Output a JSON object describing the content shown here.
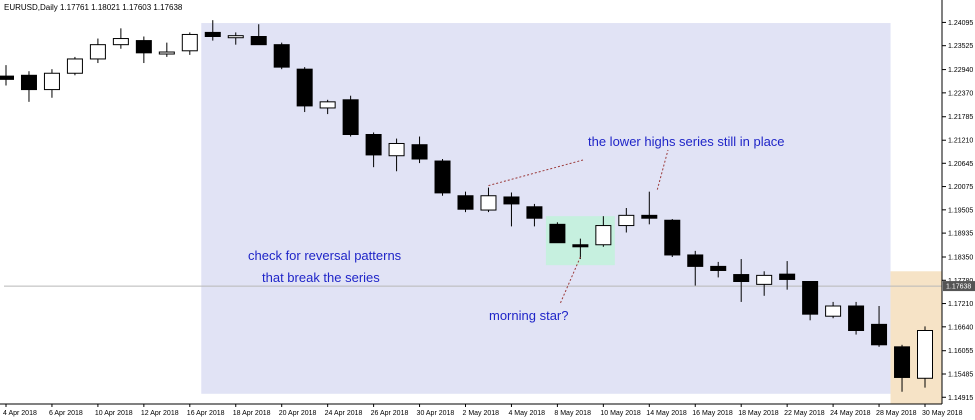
{
  "chart_data": {
    "type": "candlestick",
    "symbol_caption": "EURUSD,Daily  1.17761 1.18021 1.17603 1.17638",
    "ylim": [
      1.1475,
      1.2435
    ],
    "ytick_values": [
      1.24095,
      1.23525,
      1.2294,
      1.2237,
      1.21785,
      1.2121,
      1.20645,
      1.20075,
      1.19505,
      1.18935,
      1.1835,
      1.1778,
      1.1721,
      1.1664,
      1.16055,
      1.15485,
      1.14915
    ],
    "ytick_labels": [
      "1.24095",
      "1.23525",
      "1.22940",
      "1.22370",
      "1.21785",
      "1.21210",
      "1.20645",
      "1.20075",
      "1.19505",
      "1.18935",
      "1.18350",
      "1.17780",
      "1.17210",
      "1.16640",
      "1.16055",
      "1.15485",
      "1.14915"
    ],
    "current_price": 1.17638,
    "current_price_label": "1.17638",
    "xtick_labels": [
      "4 Apr 2018",
      "6 Apr 2018",
      "10 Apr 2018",
      "12 Apr 2018",
      "16 Apr 2018",
      "18 Apr 2018",
      "20 Apr 2018",
      "24 Apr 2018",
      "26 Apr 2018",
      "30 Apr 2018",
      "2 May 2018",
      "4 May 2018",
      "8 May 2018",
      "10 May 2018",
      "14 May 2018",
      "16 May 2018",
      "18 May 2018",
      "22 May 2018",
      "24 May 2018",
      "28 May 2018",
      "30 May 2018"
    ],
    "xtick_candle_index": [
      0,
      2,
      4,
      6,
      8,
      10,
      12,
      14,
      16,
      18,
      20,
      22,
      24,
      26,
      28,
      30,
      32,
      34,
      36,
      38,
      40
    ],
    "candles": [
      {
        "o": 1.2278,
        "h": 1.2305,
        "l": 1.2255,
        "c": 1.227
      },
      {
        "o": 1.228,
        "h": 1.229,
        "l": 1.2215,
        "c": 1.2245
      },
      {
        "o": 1.2245,
        "h": 1.2295,
        "l": 1.2225,
        "c": 1.2285
      },
      {
        "o": 1.2285,
        "h": 1.2325,
        "l": 1.228,
        "c": 1.232
      },
      {
        "o": 1.232,
        "h": 1.237,
        "l": 1.231,
        "c": 1.2355
      },
      {
        "o": 1.2355,
        "h": 1.2395,
        "l": 1.2345,
        "c": 1.237
      },
      {
        "o": 1.2365,
        "h": 1.2375,
        "l": 1.231,
        "c": 1.2335
      },
      {
        "o": 1.2335,
        "h": 1.236,
        "l": 1.2325,
        "c": 1.2337
      },
      {
        "o": 1.234,
        "h": 1.2385,
        "l": 1.233,
        "c": 1.238
      },
      {
        "o": 1.2385,
        "h": 1.2415,
        "l": 1.2365,
        "c": 1.2375
      },
      {
        "o": 1.2372,
        "h": 1.2385,
        "l": 1.2355,
        "c": 1.2377
      },
      {
        "o": 1.2375,
        "h": 1.2405,
        "l": 1.2355,
        "c": 1.2355
      },
      {
        "o": 1.2355,
        "h": 1.236,
        "l": 1.2295,
        "c": 1.23
      },
      {
        "o": 1.2295,
        "h": 1.23,
        "l": 1.219,
        "c": 1.2205
      },
      {
        "o": 1.22,
        "h": 1.222,
        "l": 1.2185,
        "c": 1.2215
      },
      {
        "o": 1.222,
        "h": 1.223,
        "l": 1.213,
        "c": 1.2135
      },
      {
        "o": 1.2135,
        "h": 1.214,
        "l": 1.2055,
        "c": 1.2085
      },
      {
        "o": 1.2083,
        "h": 1.2125,
        "l": 1.2045,
        "c": 1.2113
      },
      {
        "o": 1.211,
        "h": 1.213,
        "l": 1.2065,
        "c": 1.2075
      },
      {
        "o": 1.207,
        "h": 1.2075,
        "l": 1.1985,
        "c": 1.1992
      },
      {
        "o": 1.1985,
        "h": 1.1995,
        "l": 1.1945,
        "c": 1.1952
      },
      {
        "o": 1.195,
        "h": 1.2005,
        "l": 1.1945,
        "c": 1.1985
      },
      {
        "o": 1.1982,
        "h": 1.1993,
        "l": 1.191,
        "c": 1.1965
      },
      {
        "o": 1.1958,
        "h": 1.1965,
        "l": 1.191,
        "c": 1.193
      },
      {
        "o": 1.1915,
        "h": 1.192,
        "l": 1.187,
        "c": 1.187
      },
      {
        "o": 1.1865,
        "h": 1.188,
        "l": 1.183,
        "c": 1.186
      },
      {
        "o": 1.1865,
        "h": 1.1935,
        "l": 1.186,
        "c": 1.1912
      },
      {
        "o": 1.1912,
        "h": 1.1955,
        "l": 1.1895,
        "c": 1.1937
      },
      {
        "o": 1.1937,
        "h": 1.1995,
        "l": 1.1915,
        "c": 1.193
      },
      {
        "o": 1.1925,
        "h": 1.1928,
        "l": 1.1835,
        "c": 1.184
      },
      {
        "o": 1.184,
        "h": 1.185,
        "l": 1.1765,
        "c": 1.1812
      },
      {
        "o": 1.1812,
        "h": 1.1823,
        "l": 1.1785,
        "c": 1.1802
      },
      {
        "o": 1.1792,
        "h": 1.183,
        "l": 1.1725,
        "c": 1.1775
      },
      {
        "o": 1.1768,
        "h": 1.18,
        "l": 1.174,
        "c": 1.179
      },
      {
        "o": 1.1793,
        "h": 1.1825,
        "l": 1.1755,
        "c": 1.178
      },
      {
        "o": 1.1775,
        "h": 1.1775,
        "l": 1.168,
        "c": 1.1695
      },
      {
        "o": 1.169,
        "h": 1.1725,
        "l": 1.1685,
        "c": 1.1715
      },
      {
        "o": 1.1715,
        "h": 1.1725,
        "l": 1.1645,
        "c": 1.1655
      },
      {
        "o": 1.167,
        "h": 1.1715,
        "l": 1.1615,
        "c": 1.162
      },
      {
        "o": 1.1615,
        "h": 1.162,
        "l": 1.1505,
        "c": 1.154
      },
      {
        "o": 1.1538,
        "h": 1.1665,
        "l": 1.1515,
        "c": 1.1655
      }
    ],
    "regions": [
      {
        "name": "downtrend-zone",
        "from_index": 9,
        "to_index": 38,
        "y_from": 1.15,
        "y_to": 1.2408,
        "color": "#e1e3f5"
      },
      {
        "name": "morning-star-zone",
        "from_index": 24,
        "to_index": 26,
        "y_from": 1.1815,
        "y_to": 1.1935,
        "color": "#c6f0df"
      },
      {
        "name": "latest-candle-zone",
        "from_index": 39,
        "to_index": 40,
        "y_from": 1.1475,
        "y_to": 1.18,
        "color": "#f6e3c6"
      }
    ],
    "annotations": [
      {
        "name": "lower-highs-label",
        "text": "the lower highs series still in place"
      },
      {
        "name": "reversal-label-line1",
        "text": "check for reversal patterns"
      },
      {
        "name": "reversal-label-line2",
        "text": "that break the series"
      },
      {
        "name": "morning-star-label",
        "text": "morning star?"
      }
    ],
    "lower_highs_line": [
      {
        "index": 21,
        "price": 1.2005
      },
      {
        "index": 28,
        "price": 1.1995
      }
    ],
    "colors": {
      "bull": "#ffffff",
      "bear": "#000000",
      "wick": "#000000",
      "annotation": "#1f25c8",
      "price_line": "#b8b8b8",
      "price_tag": "#555555",
      "dotted": "#9b3a3a"
    }
  }
}
